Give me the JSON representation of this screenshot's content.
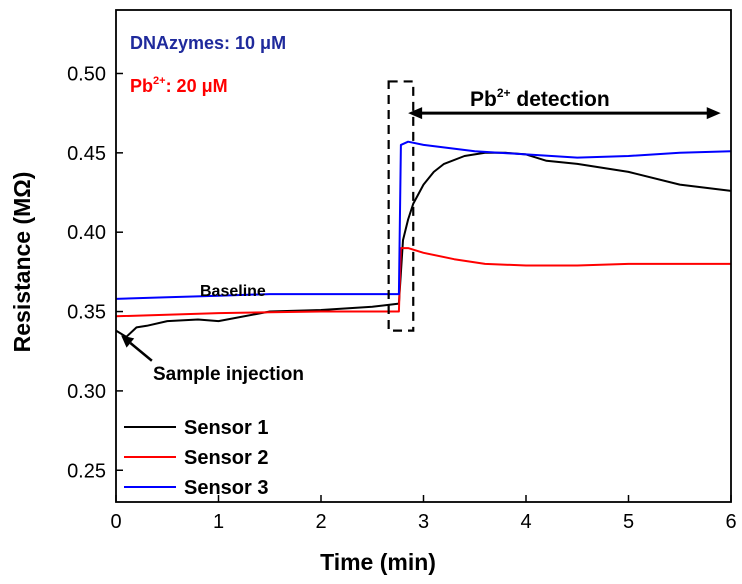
{
  "chart_data": {
    "type": "line",
    "xlabel": "Time (min)",
    "ylabel": "Resistance (MΩ)",
    "xlim": [
      0,
      6
    ],
    "ylim": [
      0.23,
      0.54
    ],
    "xticks": [
      "0",
      "1",
      "2",
      "3",
      "4",
      "5",
      "6"
    ],
    "xtick_values": [
      0,
      1,
      2,
      3,
      4,
      5,
      6
    ],
    "yticks": [
      "0.25",
      "0.30",
      "0.35",
      "0.40",
      "0.45",
      "0.50"
    ],
    "ytick_values": [
      0.25,
      0.3,
      0.35,
      0.4,
      0.45,
      0.5
    ],
    "grid": false,
    "legend_placement": "bottom-left",
    "series": [
      {
        "name": "Sensor 1",
        "color": "#000000",
        "x": [
          0,
          0.1,
          0.2,
          0.3,
          0.5,
          0.8,
          1.0,
          1.5,
          2.0,
          2.5,
          2.76,
          2.8,
          2.85,
          2.9,
          3.0,
          3.1,
          3.2,
          3.4,
          3.6,
          3.8,
          4.0,
          4.2,
          4.5,
          5.0,
          5.5,
          6.0
        ],
        "y": [
          0.338,
          0.334,
          0.34,
          0.341,
          0.344,
          0.345,
          0.344,
          0.35,
          0.351,
          0.353,
          0.355,
          0.395,
          0.408,
          0.418,
          0.43,
          0.438,
          0.443,
          0.448,
          0.45,
          0.45,
          0.449,
          0.445,
          0.443,
          0.438,
          0.43,
          0.426
        ]
      },
      {
        "name": "Sensor 2",
        "color": "#ff0000",
        "x": [
          0,
          1.0,
          2.0,
          2.76,
          2.78,
          2.85,
          3.0,
          3.3,
          3.6,
          4.0,
          4.5,
          5.0,
          5.5,
          6.0
        ],
        "y": [
          0.347,
          0.349,
          0.35,
          0.35,
          0.39,
          0.39,
          0.387,
          0.383,
          0.38,
          0.379,
          0.379,
          0.38,
          0.38,
          0.38
        ]
      },
      {
        "name": "Sensor 3",
        "color": "#0000ff",
        "x": [
          0,
          0.5,
          1.0,
          1.5,
          2.0,
          2.5,
          2.76,
          2.78,
          2.85,
          3.0,
          3.5,
          4.0,
          4.5,
          5.0,
          5.5,
          6.0
        ],
        "y": [
          0.358,
          0.359,
          0.36,
          0.361,
          0.361,
          0.361,
          0.361,
          0.455,
          0.457,
          0.455,
          0.451,
          0.449,
          0.447,
          0.448,
          0.45,
          0.451
        ]
      }
    ],
    "annotations": {
      "dnazymes": "DNAzymes: 10 μM",
      "pb_label_main": "Pb",
      "pb_label_sup": "2+",
      "pb_label_rest": ": 20 μM",
      "detection_main": "Pb",
      "detection_sup": "2+",
      "detection_rest": " detection",
      "baseline": "Baseline",
      "sample_injection": "Sample injection",
      "detection_range_x": [
        2.85,
        5.9
      ],
      "detection_arrow_y": 0.475,
      "injection_arrow_from": [
        0.35,
        0.319
      ],
      "injection_arrow_to": [
        0.05,
        0.335
      ],
      "box_x": [
        2.66,
        2.9
      ],
      "box_y": [
        0.338,
        0.495
      ]
    },
    "annotation_colors": {
      "dnazymes": "#1f2a9c",
      "pb_label": "#ff0000"
    }
  }
}
